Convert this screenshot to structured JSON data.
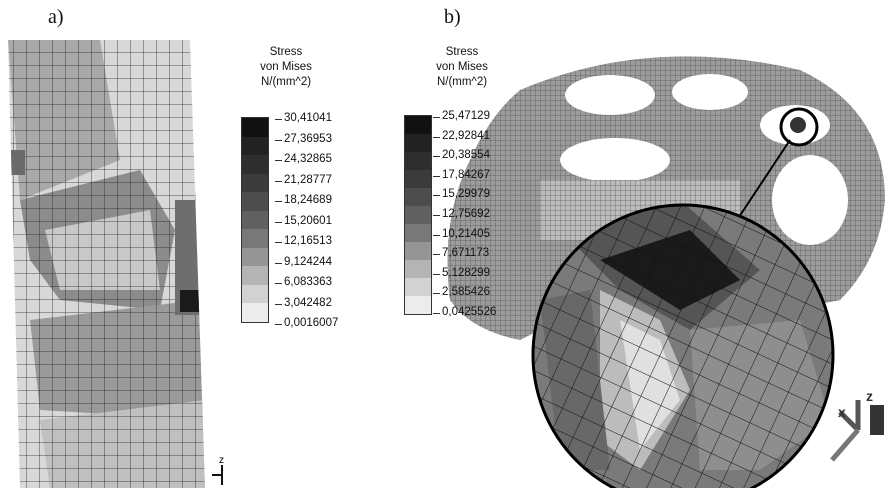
{
  "panel_a": {
    "label": "a)",
    "legend": {
      "title_lines": [
        "Stress",
        "von Mises",
        "N/(mm^2)"
      ],
      "values": [
        "30,41041",
        "27,36953",
        "24,32865",
        "21,28777",
        "18,24689",
        "15,20601",
        "12,16513",
        "9,124244",
        "6,083363",
        "3,042482",
        "0,0016007"
      ],
      "colors": [
        "#111111",
        "#222222",
        "#2e2e2e",
        "#3b3b3b",
        "#4d4d4d",
        "#606060",
        "#787878",
        "#959595",
        "#b4b4b4",
        "#d2d2d2",
        "#ececec"
      ]
    },
    "axis_label": "z"
  },
  "panel_b": {
    "label": "b)",
    "legend": {
      "title_lines": [
        "Stress",
        "von Mises",
        "N/(mm^2)"
      ],
      "values": [
        "25,47129",
        "22,92841",
        "20,38554",
        "17,84267",
        "15,29979",
        "12,75692",
        "10,21405",
        "7,671173",
        "5,128299",
        "2,585426",
        "0,0425526"
      ],
      "colors": [
        "#111111",
        "#222222",
        "#2e2e2e",
        "#3b3b3b",
        "#4d4d4d",
        "#606060",
        "#787878",
        "#959595",
        "#b4b4b4",
        "#d2d2d2",
        "#ececec"
      ]
    },
    "axis_labels": [
      "x",
      "z"
    ]
  }
}
